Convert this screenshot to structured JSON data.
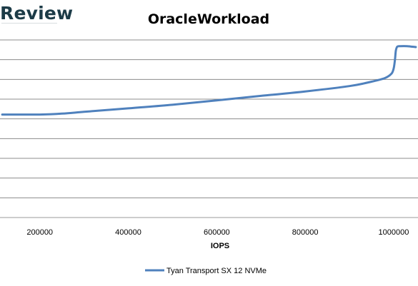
{
  "brand": {
    "text": "Review"
  },
  "chart_data": {
    "type": "line",
    "title": "OracleWorkload",
    "xlabel": "IOPS",
    "ylabel": "",
    "x_ticks": [
      "200000",
      "400000",
      "600000",
      "800000",
      "1000000"
    ],
    "xlim": [
      110000,
      1055000
    ],
    "ylim": [
      0,
      1
    ],
    "grid": true,
    "legend_position": "bottom",
    "series": [
      {
        "name": "Tyan Transport SX 12 NVMe",
        "color": "#4f81bd",
        "x": [
          115000,
          150000,
          200000,
          250000,
          300000,
          400000,
          500000,
          600000,
          700000,
          800000,
          900000,
          950000,
          980000,
          995000,
          1000000,
          1003000,
          1005000,
          1008000,
          1015000,
          1030000,
          1050000
        ],
        "y": [
          0.58,
          0.58,
          0.58,
          0.585,
          0.595,
          0.615,
          0.635,
          0.66,
          0.685,
          0.71,
          0.74,
          0.765,
          0.785,
          0.81,
          0.84,
          0.89,
          0.94,
          0.962,
          0.965,
          0.965,
          0.96
        ]
      }
    ]
  }
}
